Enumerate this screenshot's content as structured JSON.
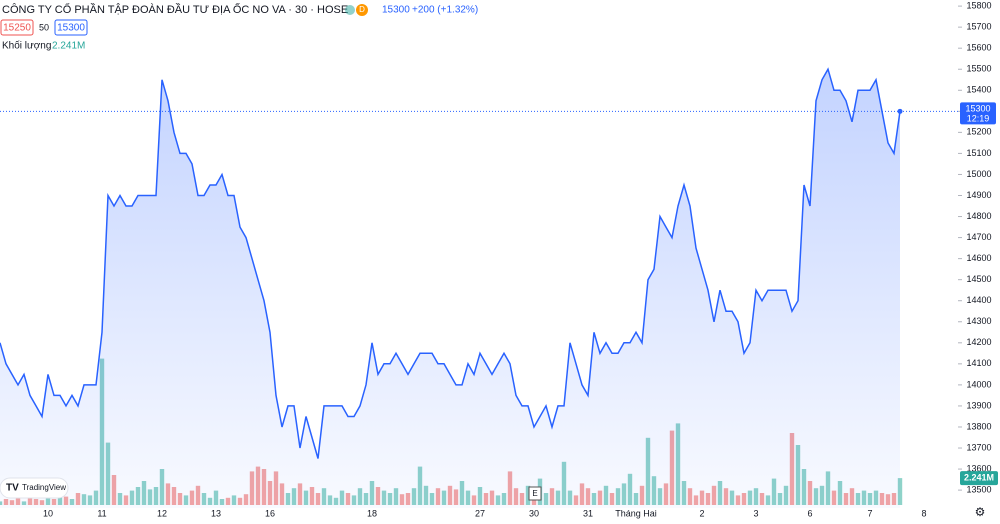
{
  "chart_data": {
    "type": "area",
    "title": "CÔNG TY CỔ PHẦN TẬP ĐOÀN ĐẦU TƯ ĐỊA ỐC NO VA · 30 · HOSE",
    "badge": "D",
    "last_price": 15300,
    "change": "+200 (+1.32%)",
    "bid": "15250",
    "spread": "50",
    "ask": "15300",
    "clock": "12:19",
    "event_marker": "E",
    "brand": "TradingView",
    "color": "#2962ff",
    "categories": [
      null,
      null,
      null,
      null,
      null,
      null,
      null,
      null,
      "10",
      null,
      null,
      null,
      null,
      null,
      null,
      null,
      null,
      "11",
      null,
      null,
      null,
      null,
      null,
      null,
      null,
      null,
      null,
      "12",
      null,
      null,
      null,
      null,
      null,
      null,
      null,
      null,
      "13",
      null,
      null,
      null,
      null,
      null,
      null,
      null,
      null,
      "16",
      null,
      null,
      null,
      null,
      null,
      null,
      null,
      null,
      null,
      null,
      null,
      null,
      null,
      null,
      null,
      null,
      "18",
      null,
      null,
      null,
      null,
      null,
      null,
      null,
      null,
      null,
      null,
      null,
      null,
      null,
      null,
      null,
      null,
      null,
      "27",
      null,
      null,
      null,
      null,
      null,
      null,
      null,
      null,
      "30",
      null,
      null,
      null,
      null,
      null,
      null,
      null,
      null,
      "31",
      null,
      null,
      null,
      null,
      null,
      null,
      null,
      "Tháng Hai",
      null,
      null,
      null,
      null,
      null,
      null,
      null,
      null,
      null,
      null,
      "2",
      null,
      null,
      null,
      null,
      null,
      null,
      null,
      null,
      "3",
      null,
      null,
      null,
      null,
      null,
      null,
      null,
      null,
      "6",
      null,
      null,
      null,
      null,
      null,
      null,
      null,
      null,
      null,
      "7",
      null,
      null,
      null,
      null,
      null,
      null,
      null,
      null,
      "8"
    ],
    "values": [
      14200,
      14100,
      14050,
      14000,
      14050,
      13950,
      13900,
      13850,
      14050,
      13950,
      13950,
      13900,
      13950,
      13900,
      14000,
      14000,
      14000,
      14250,
      14900,
      14850,
      14900,
      14850,
      14850,
      14900,
      14900,
      14900,
      14900,
      15450,
      15350,
      15200,
      15100,
      15100,
      15050,
      14900,
      14900,
      14950,
      14950,
      15000,
      14900,
      14900,
      14750,
      14700,
      14600,
      14500,
      14400,
      14250,
      13950,
      13800,
      13900,
      13900,
      13700,
      13850,
      13750,
      13650,
      13900,
      13900,
      13900,
      13900,
      13850,
      13850,
      13900,
      14000,
      14200,
      14050,
      14100,
      14100,
      14150,
      14100,
      14050,
      14100,
      14150,
      14150,
      14150,
      14100,
      14100,
      14050,
      14000,
      14000,
      14100,
      14050,
      14150,
      14100,
      14050,
      14100,
      14150,
      14100,
      13950,
      13900,
      13900,
      13800,
      13850,
      13900,
      13800,
      13900,
      13900,
      14200,
      14100,
      14000,
      13950,
      14250,
      14150,
      14200,
      14150,
      14150,
      14200,
      14200,
      14250,
      14200,
      14500,
      14550,
      14800,
      14750,
      14700,
      14850,
      14950,
      14850,
      14650,
      14550,
      14450,
      14300,
      14450,
      14350,
      14350,
      14300,
      14150,
      14200,
      14450,
      14400,
      14450,
      14450,
      14450,
      14450,
      14350,
      14400,
      14950,
      14850,
      15350,
      15450,
      15500,
      15400,
      15400,
      15350,
      15250,
      15400,
      15400,
      15400,
      15450,
      15300,
      15150,
      15100,
      15300,
      null,
      null,
      null,
      null
    ],
    "ylim": [
      13415,
      15829
    ],
    "yticks": [
      13500,
      13600,
      13700,
      13800,
      13900,
      14000,
      14100,
      14200,
      14300,
      14400,
      14500,
      14600,
      14700,
      14800,
      14900,
      15000,
      15100,
      15200,
      15300,
      15400,
      15500,
      15600,
      15700,
      15800
    ],
    "volume": {
      "name": "Khối lượng",
      "last_label": "2.241M",
      "up_color": "#8fd3c9",
      "down_color": "#f5a5a3",
      "last_color": "#26a69a",
      "ylim": [
        0,
        40
      ],
      "values": [
        0.3,
        0.5,
        0.4,
        0.6,
        0.3,
        0.8,
        0.5,
        0.4,
        0.6,
        0.5,
        0.8,
        0.7,
        0.5,
        1.0,
        0.9,
        0.8,
        1.2,
        12.2,
        5.2,
        2.5,
        1.0,
        0.8,
        1.2,
        1.5,
        2.0,
        1.3,
        1.5,
        3.0,
        1.8,
        1.5,
        1.0,
        0.8,
        1.2,
        1.6,
        1.0,
        0.6,
        1.2,
        0.5,
        0.6,
        0.8,
        0.6,
        0.9,
        2.8,
        3.2,
        3.0,
        2.0,
        2.8,
        1.8,
        1.0,
        1.4,
        1.8,
        1.2,
        1.5,
        1.0,
        1.4,
        0.8,
        0.6,
        1.2,
        1.0,
        0.8,
        1.4,
        1.0,
        2.0,
        1.5,
        1.2,
        1.0,
        1.4,
        0.9,
        1.0,
        1.4,
        3.2,
        1.6,
        1.0,
        1.4,
        1.2,
        1.6,
        1.3,
        2.0,
        1.2,
        0.8,
        1.5,
        1.0,
        1.2,
        0.8,
        1.0,
        2.8,
        1.4,
        1.0,
        1.6,
        0.9,
        2.2,
        1.0,
        1.4,
        1.2,
        3.6,
        1.2,
        0.8,
        1.8,
        1.4,
        1.0,
        1.2,
        1.6,
        1.0,
        1.4,
        1.8,
        2.6,
        1.0,
        1.6,
        5.6,
        2.4,
        1.4,
        1.8,
        6.2,
        6.8,
        2.0,
        1.4,
        0.8,
        1.2,
        1.0,
        1.6,
        2.0,
        1.4,
        1.2,
        0.8,
        1.0,
        1.2,
        1.4,
        1.0,
        0.8,
        2.2,
        1.0,
        1.6,
        6.0,
        5.0,
        3.0,
        2.0,
        1.4,
        1.6,
        2.8,
        1.2,
        2.0,
        1.0,
        1.4,
        1.0,
        1.2,
        1.0,
        1.2,
        1.0,
        0.9,
        1.0,
        2.241,
        null,
        null,
        null,
        null
      ]
    }
  }
}
